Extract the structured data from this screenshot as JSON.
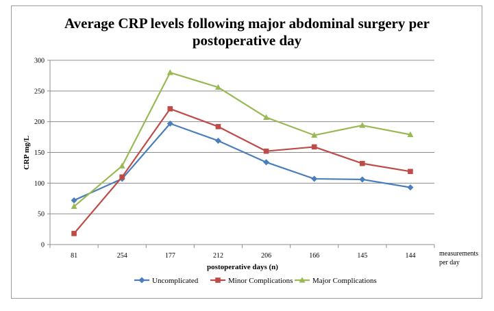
{
  "chart_data": {
    "type": "line",
    "title_line1": "Average CRP levels following major abdominal surgery per",
    "title_line2": "postoperative day",
    "xlabel": "postoperative days (n)",
    "ylabel": "CRP mg/L",
    "x_note_line1": "measurements",
    "x_note_line2": "per day",
    "categories": [
      "81",
      "254",
      "177",
      "212",
      "206",
      "166",
      "145",
      "144"
    ],
    "ylim": [
      0,
      300
    ],
    "yticks": [
      "0",
      "50",
      "100",
      "150",
      "200",
      "250",
      "300"
    ],
    "grid": true,
    "legend_position": "bottom",
    "series": [
      {
        "name": "Uncomplicated",
        "color": "#4a7ebb",
        "marker": "diamond",
        "values": [
          72,
          107,
          197,
          169,
          134,
          107,
          106,
          93
        ]
      },
      {
        "name": "Minor Complications",
        "color": "#be4b48",
        "marker": "square",
        "values": [
          18,
          110,
          221,
          192,
          152,
          159,
          132,
          119
        ]
      },
      {
        "name": "Major Complications",
        "color": "#98b954",
        "marker": "triangle",
        "values": [
          62,
          128,
          280,
          256,
          207,
          178,
          194,
          179
        ]
      }
    ]
  }
}
